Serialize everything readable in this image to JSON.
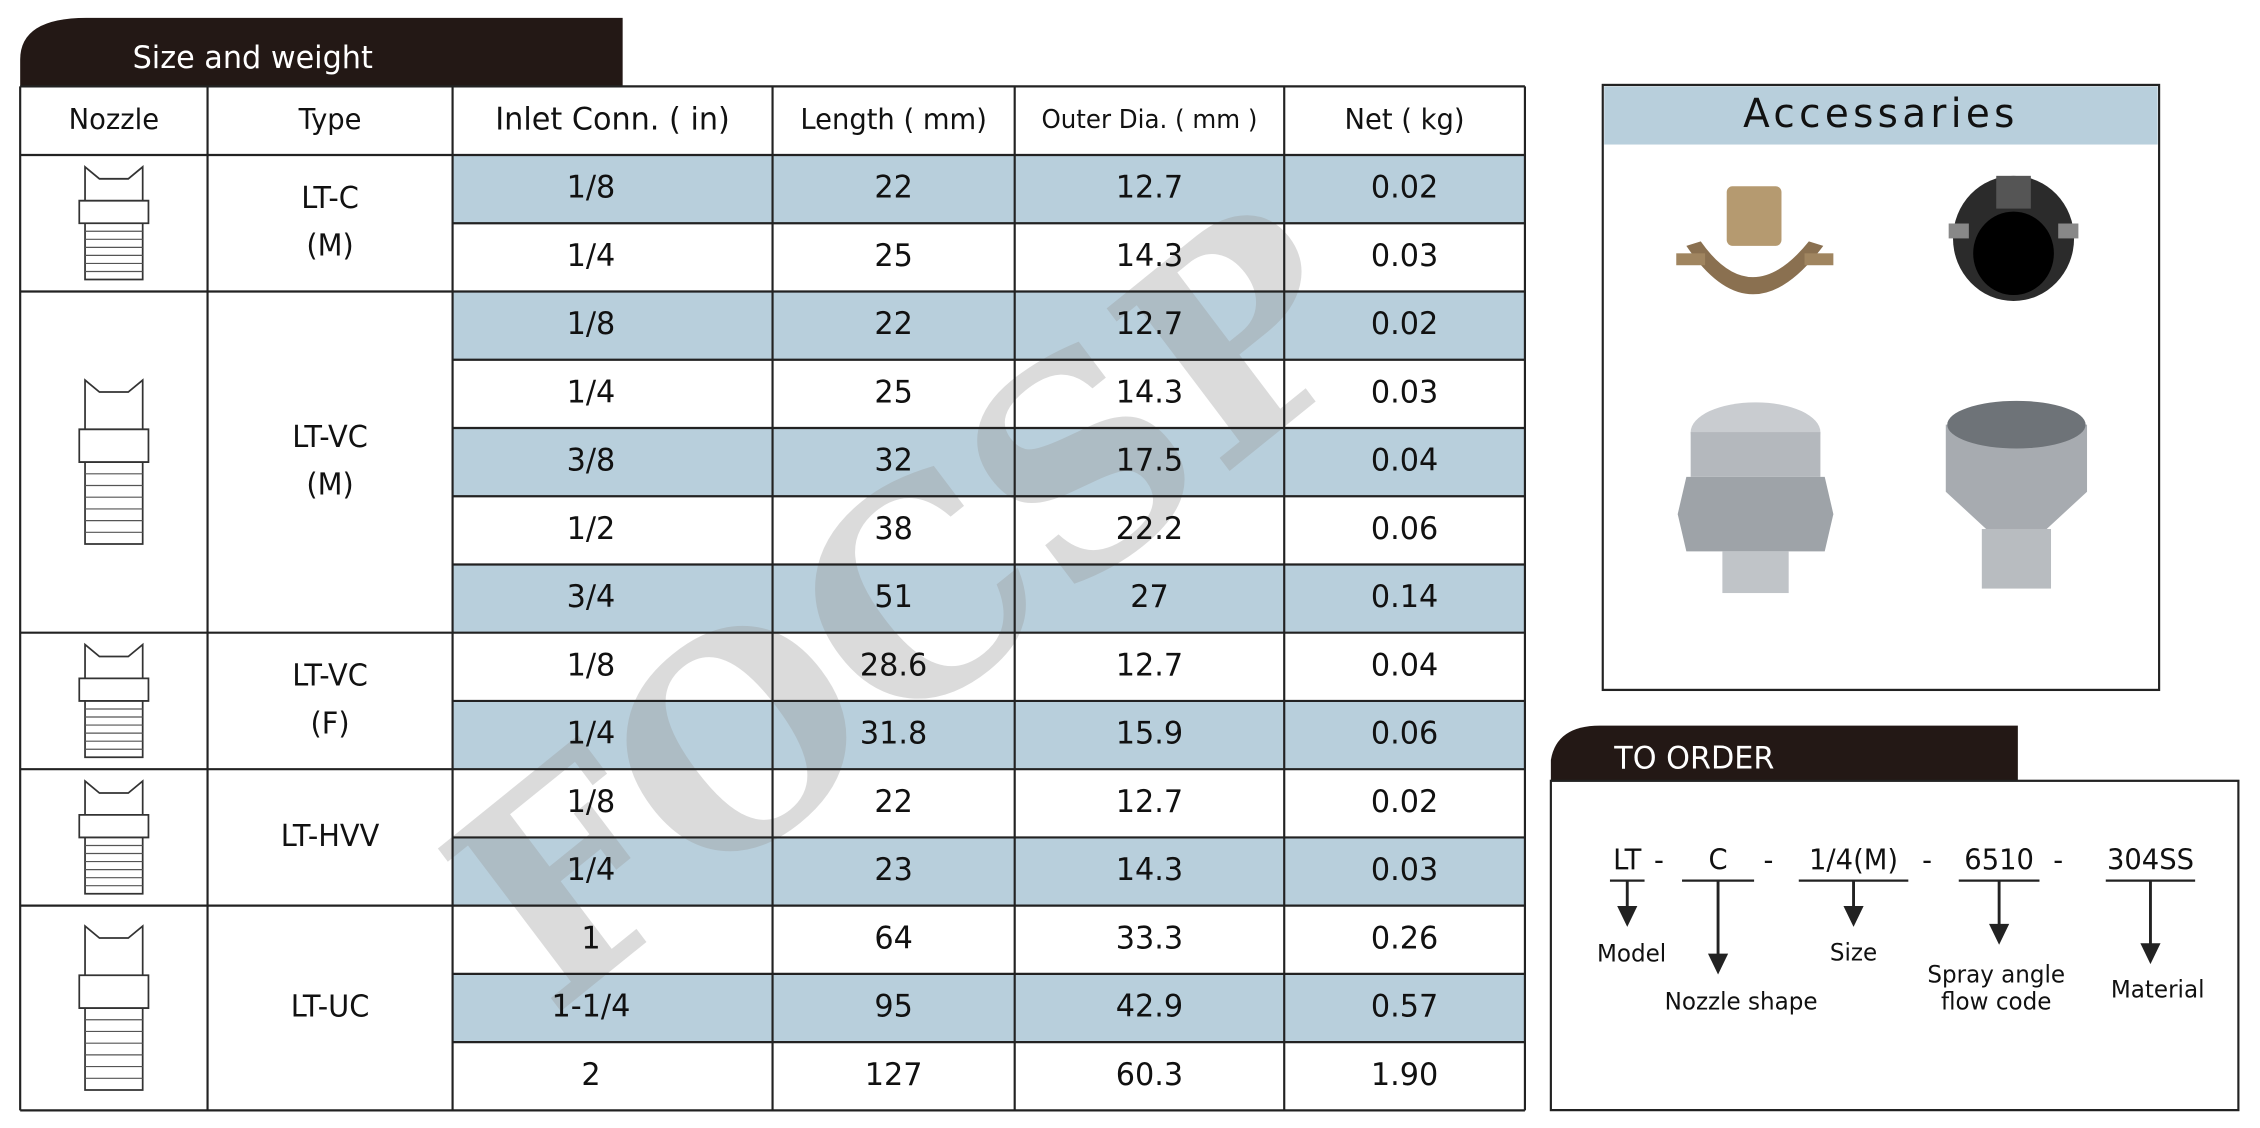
{
  "header": {
    "title": "Size and weight"
  },
  "table": {
    "columns": [
      "Nozzle",
      "Type",
      "Inlet Conn. ( in)",
      "Length ( mm)",
      "Outer Dia. ( mm )",
      "Net ( kg)"
    ],
    "groups": [
      {
        "type": [
          "LT-C",
          "(M)"
        ],
        "rows": [
          [
            "1/8",
            "22",
            "12.7",
            "0.02"
          ],
          [
            "1/4",
            "25",
            "14.3",
            "0.03"
          ]
        ]
      },
      {
        "type": [
          "LT-VC",
          "(M)"
        ],
        "rows": [
          [
            "1/8",
            "22",
            "12.7",
            "0.02"
          ],
          [
            "1/4",
            "25",
            "14.3",
            "0.03"
          ],
          [
            "3/8",
            "32",
            "17.5",
            "0.04"
          ],
          [
            "1/2",
            "38",
            "22.2",
            "0.06"
          ],
          [
            "3/4",
            "51",
            "27",
            "0.14"
          ]
        ]
      },
      {
        "type": [
          "LT-VC",
          "(F)"
        ],
        "rows": [
          [
            "1/8",
            "28.6",
            "12.7",
            "0.04"
          ],
          [
            "1/4",
            "31.8",
            "15.9",
            "0.06"
          ]
        ]
      },
      {
        "type": [
          "LT-HVV"
        ],
        "rows": [
          [
            "1/8",
            "22",
            "12.7",
            "0.02"
          ],
          [
            "1/4",
            "23",
            "14.3",
            "0.03"
          ]
        ]
      },
      {
        "type": [
          "LT-UC"
        ],
        "rows": [
          [
            "1",
            "64",
            "33.3",
            "0.26"
          ],
          [
            "1-1/4",
            "95",
            "42.9",
            "0.57"
          ],
          [
            "2",
            "127",
            "60.3",
            "1.90"
          ]
        ]
      }
    ]
  },
  "watermark": "FOCSP",
  "accessories": {
    "title": "Accessaries"
  },
  "order": {
    "title": "TO ORDER",
    "code": [
      "LT",
      "-",
      "C",
      "-",
      "1/4(M)",
      "-",
      "6510",
      "-",
      "304SS"
    ],
    "labels": [
      [
        "Model"
      ],
      [
        "Nozzle shape"
      ],
      [
        "Size"
      ],
      [
        "Spray angle",
        "flow code"
      ],
      [
        "Material"
      ]
    ]
  }
}
